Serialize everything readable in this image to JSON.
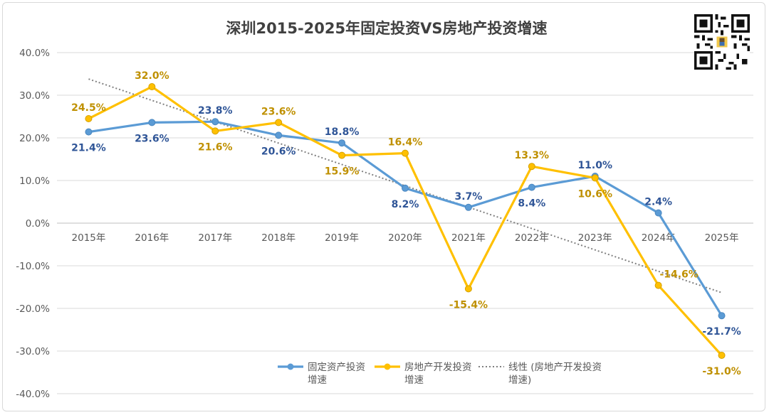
{
  "chart_data": {
    "type": "line",
    "title": "深圳2015-2025年固定投资VS房地产投资增速",
    "categories": [
      "2015年",
      "2016年",
      "2017年",
      "2018年",
      "2019年",
      "2020年",
      "2021年",
      "2022年",
      "2023年",
      "2024年",
      "2025年"
    ],
    "ylim": [
      -40,
      40
    ],
    "yticks": [
      40,
      30,
      20,
      10,
      0,
      -10,
      -20,
      -30,
      -40
    ],
    "ytick_labels": [
      "40.0%",
      "30.0%",
      "20.0%",
      "10.0%",
      "0.0%",
      "-10.0%",
      "-20.0%",
      "-30.0%",
      "-40.0%"
    ],
    "grid": true,
    "legend_position": "bottom",
    "series": [
      {
        "name": "固定资产投资增速",
        "legend_lines": [
          "固定资产投资",
          "增速"
        ],
        "color": "#5b9bd5",
        "label_color": "#2f5597",
        "values": [
          21.4,
          23.6,
          23.8,
          20.6,
          18.8,
          8.2,
          3.7,
          8.4,
          11.0,
          2.4,
          -21.7
        ],
        "labels": [
          "21.4%",
          "23.6%",
          "23.8%",
          "20.6%",
          "18.8%",
          "8.2%",
          "3.7%",
          "8.4%",
          "11.0%",
          "2.4%",
          "-21.7%"
        ]
      },
      {
        "name": "房地产开发投资增速",
        "legend_lines": [
          "房地产开发投资",
          "增速"
        ],
        "color": "#ffc000",
        "label_color": "#bf9000",
        "values": [
          24.5,
          32.0,
          21.6,
          23.6,
          15.9,
          16.4,
          -15.4,
          13.3,
          10.6,
          -14.6,
          -31.0
        ],
        "labels": [
          "24.5%",
          "32.0%",
          "21.6%",
          "23.6%",
          "15.9%",
          "16.4%",
          "-15.4%",
          "13.3%",
          "10.6%",
          "-14.6%",
          "-31.0%"
        ]
      }
    ],
    "trendline": {
      "name": "线性 (房地产开发投资增速)",
      "legend_lines": [
        "线性 (房地产开发投资",
        "增速)"
      ],
      "color": "#808080",
      "start": 33.8,
      "end": -16.3
    }
  }
}
